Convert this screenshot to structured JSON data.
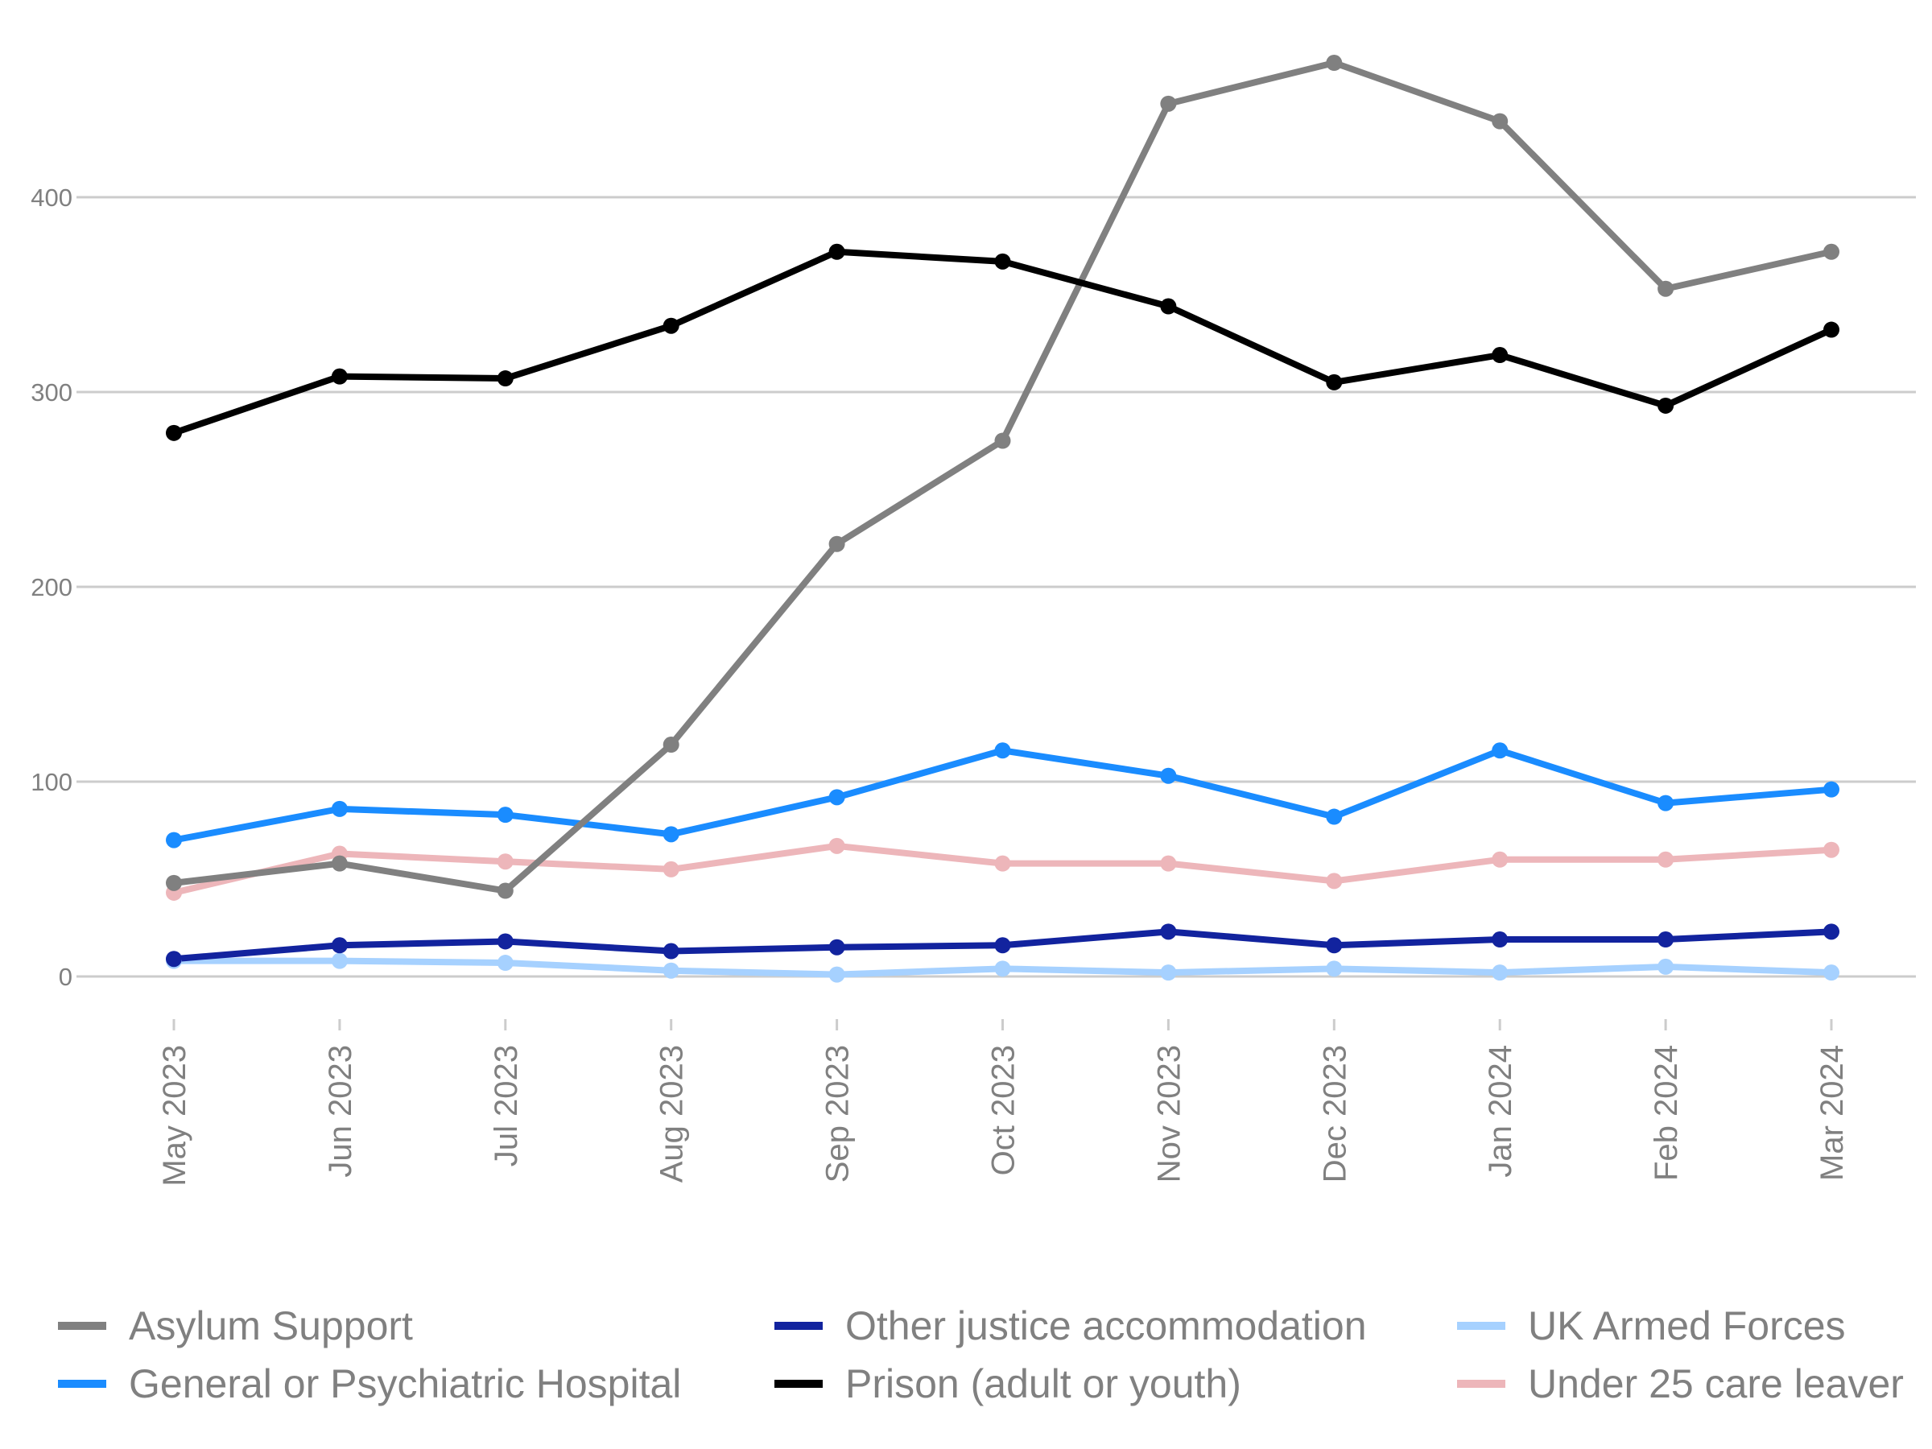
{
  "chart_data": {
    "type": "line",
    "title": "",
    "xlabel": "",
    "ylabel": "",
    "categories": [
      "May 2023",
      "Jun 2023",
      "Jul 2023",
      "Aug 2023",
      "Sep 2023",
      "Oct 2023",
      "Nov 2023",
      "Dec 2023",
      "Jan 2024",
      "Feb 2024",
      "Mar 2024"
    ],
    "yticks": [
      0,
      100,
      200,
      300,
      400
    ],
    "ylim": [
      0,
      480
    ],
    "grid": "horizontal",
    "legend_position": "bottom",
    "series": [
      {
        "name": "Asylum Support",
        "color": "#808080",
        "values": [
          48,
          58,
          44,
          119,
          222,
          275,
          448,
          469,
          439,
          353,
          372
        ]
      },
      {
        "name": "General or Psychiatric Hospital",
        "color": "#1a8cff",
        "values": [
          70,
          86,
          83,
          73,
          92,
          116,
          103,
          82,
          116,
          89,
          96
        ]
      },
      {
        "name": "Other justice accommodation",
        "color": "#12239e",
        "values": [
          9,
          16,
          18,
          13,
          15,
          16,
          23,
          16,
          19,
          19,
          23
        ]
      },
      {
        "name": "Prison (adult or youth)",
        "color": "#000000",
        "values": [
          279,
          308,
          307,
          334,
          372,
          367,
          344,
          305,
          319,
          293,
          332
        ]
      },
      {
        "name": "UK Armed Forces",
        "color": "#a6d1ff",
        "values": [
          8,
          8,
          7,
          3,
          1,
          4,
          2,
          4,
          2,
          5,
          2
        ]
      },
      {
        "name": "Under 25 care leaver",
        "color": "#edb6ba",
        "values": [
          43,
          63,
          59,
          55,
          67,
          58,
          58,
          49,
          60,
          60,
          65
        ]
      }
    ]
  }
}
